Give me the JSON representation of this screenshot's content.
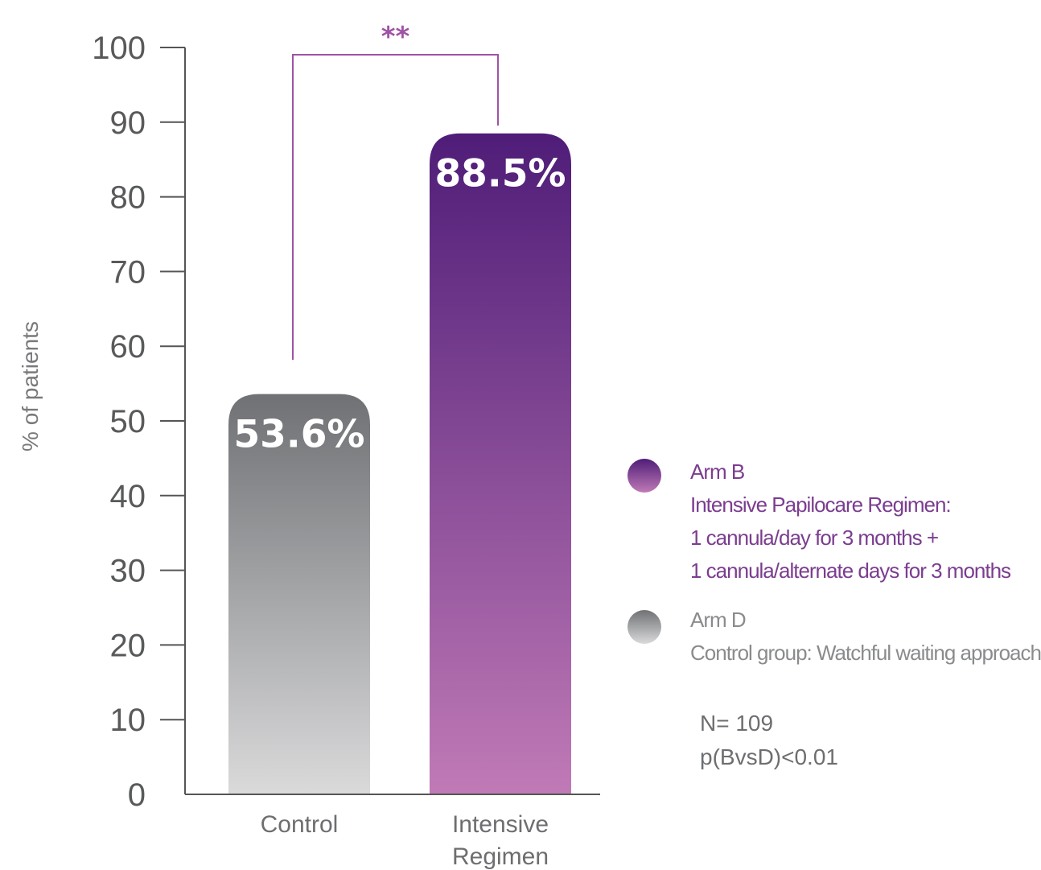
{
  "chart_data": {
    "type": "bar",
    "categories": [
      "Control",
      "Intensive\nRegimen"
    ],
    "values": [
      53.6,
      88.5
    ],
    "value_labels": [
      "53.6%",
      "88.5%"
    ],
    "ylabel": "% of patients",
    "xlabel": "",
    "ylim": [
      0,
      100
    ],
    "yticks": [
      0,
      10,
      20,
      30,
      40,
      50,
      60,
      70,
      80,
      90,
      100
    ],
    "grid": false,
    "bar_colors": [
      {
        "top": "#6f7174",
        "bottom": "#dadadb"
      },
      {
        "top": "#4f1d78",
        "bottom": "#c07ab6"
      }
    ],
    "significance": {
      "label": "**",
      "between": [
        0,
        1
      ],
      "color": "#a052a6"
    },
    "legend": {
      "position": "right",
      "entries": [
        {
          "lines": [
            "Arm B",
            "Intensive Papilocare Regimen:",
            "1 cannula/day for 3 months +",
            "1 cannula/alternate days for 3 months"
          ],
          "color": "#7b3d8f"
        },
        {
          "lines": [
            "Arm D",
            "Control group: Watchful waiting approach"
          ],
          "color": "#8a8b8d"
        }
      ]
    },
    "annotations": [
      "N= 109",
      "p(BvsD)<0.01"
    ]
  }
}
